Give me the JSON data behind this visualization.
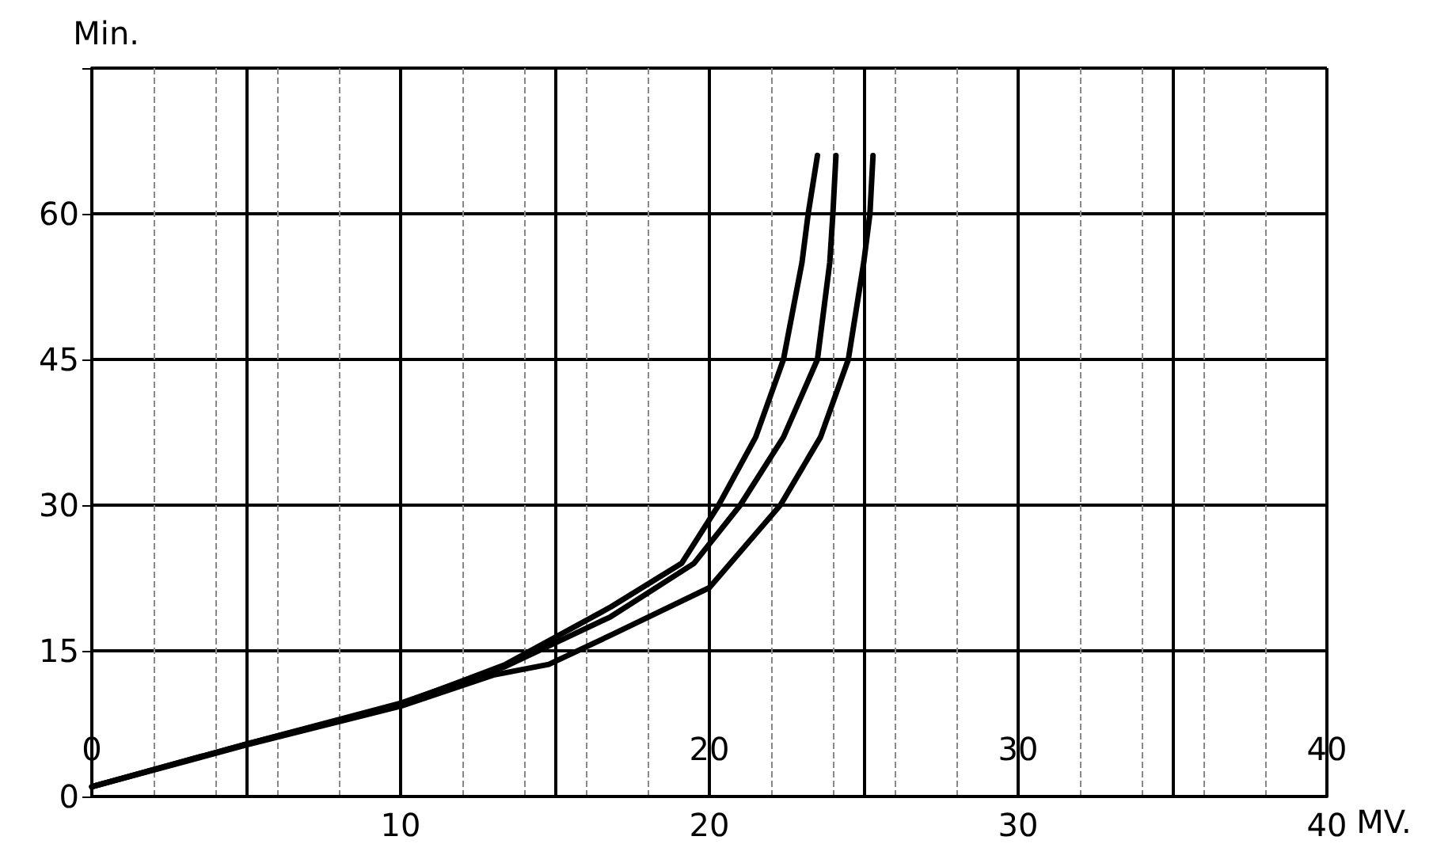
{
  "chart_data": {
    "type": "line",
    "ylabel": "Min.",
    "xlabel": "MV.",
    "xlim": [
      0,
      40
    ],
    "ylim": [
      0,
      75
    ],
    "xticks": [
      {
        "value": 0,
        "label": null
      },
      {
        "value": 5,
        "label": null
      },
      10,
      {
        "value": 15,
        "label": null
      },
      20,
      {
        "value": 25,
        "label": null
      },
      30,
      {
        "value": 35,
        "label": null
      },
      40
    ],
    "x2lim": [
      0,
      40
    ],
    "x2ticks": [
      0,
      20,
      30,
      40
    ],
    "yticks": [
      0,
      15,
      30,
      45,
      60,
      {
        "value": 75,
        "label": null
      }
    ],
    "grid": true,
    "marker": "none",
    "line_style": "solid",
    "series": [
      {
        "color": "#000000",
        "x": [
          0,
          5,
          10,
          13.4,
          16.8,
          19.1,
          20.3,
          21.5,
          22.4,
          23,
          23.2,
          23.5
        ],
        "values": [
          1,
          5.4,
          9.5,
          13.6,
          19.5,
          24,
          30,
          37,
          45,
          55,
          60,
          66
        ]
      },
      {
        "color": "#000000",
        "x": [
          0,
          5,
          10,
          13.4,
          16.8,
          19.5,
          21,
          22.4,
          23.5,
          23.9,
          24,
          24.1
        ],
        "values": [
          1,
          5.4,
          9.6,
          13.4,
          18.5,
          24,
          30,
          37,
          45,
          55,
          60,
          66
        ]
      },
      {
        "color": "#000000",
        "x": [
          0,
          5,
          10,
          13,
          14.8,
          16.8,
          20,
          22.3,
          23.6,
          24.5,
          25,
          25.2,
          25.3
        ],
        "values": [
          1,
          5.3,
          9.3,
          12.5,
          13.6,
          16.6,
          21.5,
          30,
          37,
          45,
          55,
          60,
          66
        ]
      }
    ]
  }
}
